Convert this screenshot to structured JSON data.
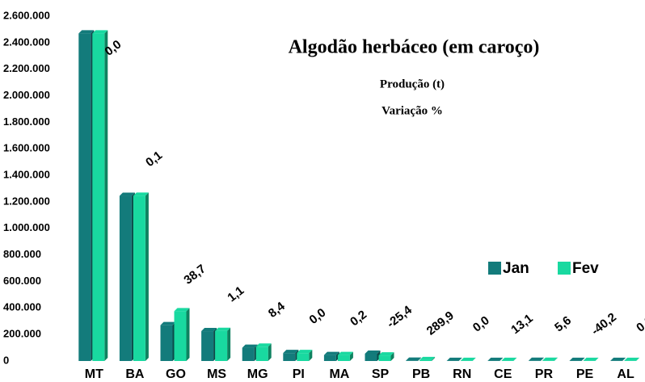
{
  "chart_data": {
    "type": "bar",
    "title": "Algodão herbáceo (em caroço)",
    "subtitle": [
      "Produção (t)",
      "Variação %"
    ],
    "categories": [
      "MT",
      "BA",
      "GO",
      "MS",
      "MG",
      "PI",
      "MA",
      "SP",
      "PB",
      "RN",
      "CE",
      "PR",
      "PE",
      "AL"
    ],
    "series": [
      {
        "name": "Jan",
        "color": "#137b7b",
        "values": [
          2470000,
          1245000,
          270000,
          225000,
          100000,
          60000,
          45000,
          55000,
          2000,
          1000,
          1000,
          1500,
          1000,
          500
        ]
      },
      {
        "name": "Fev",
        "color": "#19d9a0",
        "values": [
          2470000,
          1246000,
          375000,
          227000,
          108000,
          60000,
          45000,
          42000,
          7000,
          1000,
          1100,
          1600,
          600,
          500
        ]
      }
    ],
    "variation_labels": [
      "0,0",
      "0,1",
      "38,7",
      "1,1",
      "8,4",
      "0,0",
      "0,2",
      "-25,4",
      "289,9",
      "0,0",
      "13,1",
      "5,6",
      "-40,2",
      "0,0"
    ],
    "ylim": [
      0,
      2600000
    ],
    "yticks": [
      0,
      {
        "value": 200000,
        "label": "200.000"
      },
      {
        "value": 400000,
        "label": "400.000"
      },
      {
        "value": 600000,
        "label": "600.000"
      },
      {
        "value": 800000,
        "label": "800.000"
      },
      {
        "value": 1000000,
        "label": "1.000.000"
      },
      {
        "value": 1200000,
        "label": "1.200.000"
      },
      {
        "value": 1400000,
        "label": "1.400.000"
      },
      {
        "value": 1600000,
        "label": "1.600.000"
      },
      {
        "value": 1800000,
        "label": "1.800.000"
      },
      {
        "value": 2000000,
        "label": "2.000.000"
      },
      {
        "value": 2200000,
        "label": "2.200.000"
      },
      {
        "value": 2400000,
        "label": "2.400.000"
      },
      {
        "value": 2600000,
        "label": "2.600.000"
      }
    ],
    "legend": "lower right"
  }
}
